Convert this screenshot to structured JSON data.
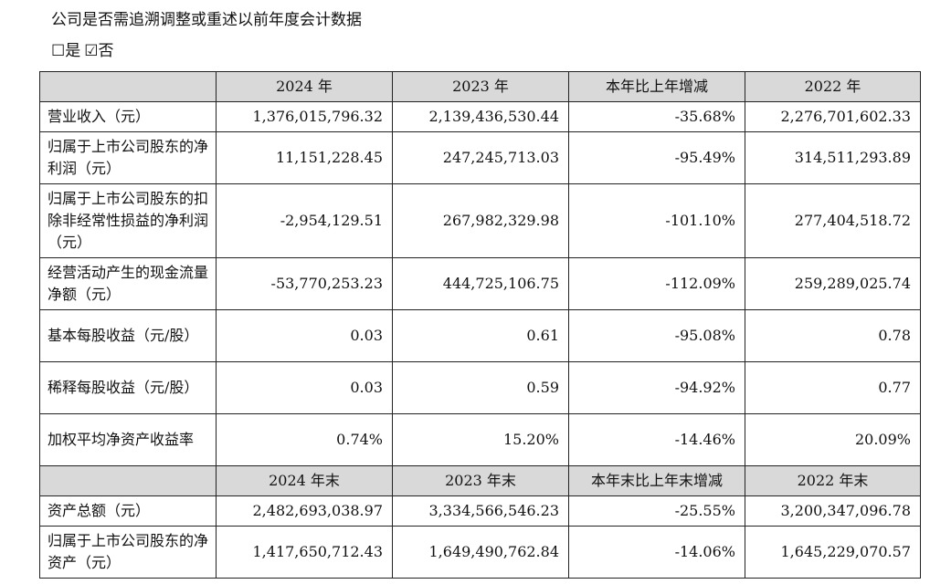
{
  "heading": "公司是否需追溯调整或重述以前年度会计数据",
  "checkbox_options": {
    "yes_box": "☐",
    "yes_label": "是",
    "no_box": "☑",
    "no_label": "否"
  },
  "table": {
    "header1": [
      "2024 年",
      "2023 年",
      "本年比上年增减",
      "2022 年"
    ],
    "rows1": [
      {
        "label": "营业收入（元）",
        "values": [
          "1,376,015,796.32",
          "2,139,436,530.44",
          "-35.68%",
          "2,276,701,602.33"
        ]
      },
      {
        "label": "归属于上市公司股东的净利润（元）",
        "values": [
          "11,151,228.45",
          "247,245,713.03",
          "-95.49%",
          "314,511,293.89"
        ]
      },
      {
        "label": "归属于上市公司股东的扣除非经常性损益的净利润（元）",
        "values": [
          "-2,954,129.51",
          "267,982,329.98",
          "-101.10%",
          "277,404,518.72"
        ]
      },
      {
        "label": "经营活动产生的现金流量净额（元）",
        "values": [
          "-53,770,253.23",
          "444,725,106.75",
          "-112.09%",
          "259,289,025.74"
        ]
      },
      {
        "label": "基本每股收益（元/股）",
        "values": [
          "0.03",
          "0.61",
          "-95.08%",
          "0.78"
        ]
      },
      {
        "label": "稀释每股收益（元/股）",
        "values": [
          "0.03",
          "0.59",
          "-94.92%",
          "0.77"
        ]
      },
      {
        "label": "加权平均净资产收益率",
        "values": [
          "0.74%",
          "15.20%",
          "-14.46%",
          "20.09%"
        ]
      }
    ],
    "header2": [
      "2024 年末",
      "2023 年末",
      "本年末比上年末增减",
      "2022 年末"
    ],
    "rows2": [
      {
        "label": "资产总额（元）",
        "values": [
          "2,482,693,038.97",
          "3,334,566,546.23",
          "-25.55%",
          "3,200,347,096.78"
        ]
      },
      {
        "label": "归属于上市公司股东的净资产（元）",
        "values": [
          "1,417,650,712.43",
          "1,649,490,762.84",
          "-14.06%",
          "1,645,229,070.57"
        ]
      }
    ]
  }
}
